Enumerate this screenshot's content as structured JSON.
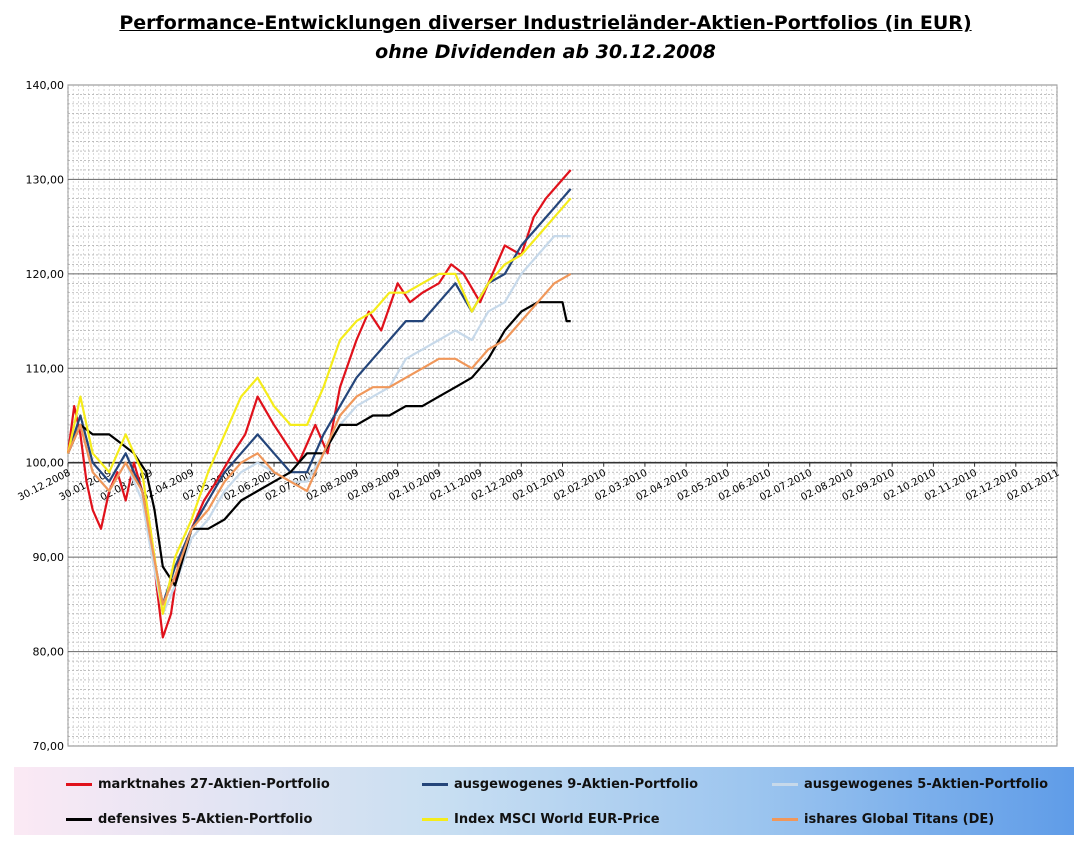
{
  "chart_data": {
    "type": "line",
    "title": "Performance-Entwicklungen diverser Industrieländer-Aktien-Portfolios (in EUR)",
    "subtitle": "ohne Dividenden ab 30.12.2008",
    "ylim": [
      70,
      140
    ],
    "y_ticks": [
      "70,00",
      "80,00",
      "90,00",
      "100,00",
      "110,00",
      "120,00",
      "130,00",
      "140,00"
    ],
    "x_ticks": [
      "30.12.2008",
      "30.01.2009",
      "02.03.2009",
      "02.04.2009",
      "02.05.2009",
      "02.06.2009",
      "02.07.2009",
      "02.08.2009",
      "02.09.2009",
      "02.10.2009",
      "02.11.2009",
      "02.12.2009",
      "02.01.2010",
      "02.02.2010",
      "02.03.2010",
      "02.04.2010",
      "02.05.2010",
      "02.06.2010",
      "02.07.2010",
      "02.08.2010",
      "02.09.2010",
      "02.10.2010",
      "02.11.2010",
      "02.12.2010",
      "02.01.2011"
    ],
    "x_unit": "month_index_from_30.12.2008",
    "grid": true,
    "legend_position": "bottom",
    "series": [
      {
        "name": "marktnahes 27-Aktien-Portfolio",
        "color": "#e0111b",
        "x": [
          0,
          0.15,
          0.3,
          0.45,
          0.6,
          0.8,
          1.0,
          1.2,
          1.4,
          1.6,
          1.8,
          2.0,
          2.15,
          2.3,
          2.5,
          2.7,
          3.0,
          3.3,
          3.6,
          4.0,
          4.3,
          4.6,
          5.0,
          5.3,
          5.6,
          6.0,
          6.3,
          6.6,
          7.0,
          7.3,
          7.6,
          8.0,
          8.3,
          8.6,
          9.0,
          9.3,
          9.6,
          10.0,
          10.3,
          10.6,
          11.0,
          11.3,
          11.6,
          12.0,
          12.2
        ],
        "values": [
          101,
          106,
          103,
          98,
          95,
          93,
          97,
          99,
          96,
          100,
          97,
          93,
          87,
          81.5,
          84,
          90,
          93,
          96,
          98,
          101,
          103,
          107,
          104,
          102,
          100,
          104,
          101,
          108,
          113,
          116,
          114,
          119,
          117,
          118,
          119,
          121,
          120,
          117,
          120,
          123,
          122,
          126,
          128,
          130,
          131
        ]
      },
      {
        "name": "ausgewogenes 9-Aktien-Portfolio",
        "color": "#24457a",
        "x": [
          0,
          0.3,
          0.6,
          1.0,
          1.4,
          1.8,
          2.0,
          2.3,
          2.6,
          3.0,
          3.4,
          3.8,
          4.2,
          4.6,
          5.0,
          5.4,
          5.8,
          6.2,
          6.6,
          7.0,
          7.4,
          7.8,
          8.2,
          8.6,
          9.0,
          9.4,
          9.8,
          10.2,
          10.6,
          11.0,
          11.4,
          11.8,
          12.2
        ],
        "values": [
          101,
          105,
          100,
          98,
          101,
          97,
          92,
          85,
          89,
          93,
          96,
          99,
          101,
          103,
          101,
          99,
          99,
          103,
          106,
          109,
          111,
          113,
          115,
          115,
          117,
          119,
          116,
          119,
          120,
          123,
          125,
          127,
          129
        ]
      },
      {
        "name": "ausgewogenes 5-Aktien-Portfolio",
        "color": "#c7d9ea",
        "x": [
          0,
          0.3,
          0.6,
          1.0,
          1.4,
          1.8,
          2.0,
          2.3,
          2.6,
          3.0,
          3.4,
          3.8,
          4.2,
          4.6,
          5.0,
          5.4,
          5.8,
          6.2,
          6.6,
          7.0,
          7.4,
          7.8,
          8.2,
          8.6,
          9.0,
          9.4,
          9.8,
          10.2,
          10.6,
          11.0,
          11.4,
          11.8,
          12.2
        ],
        "values": [
          101,
          104,
          99,
          97,
          100,
          96,
          91,
          84,
          87,
          92,
          94,
          97,
          99,
          100,
          99,
          98,
          98,
          101,
          104,
          106,
          107,
          108,
          111,
          112,
          113,
          114,
          113,
          116,
          117,
          120,
          122,
          124,
          124
        ]
      },
      {
        "name": "defensives 5-Aktien-Portfolio",
        "color": "#000000",
        "x": [
          0,
          0.3,
          0.6,
          1.0,
          1.3,
          1.6,
          1.9,
          2.1,
          2.3,
          2.6,
          3.0,
          3.4,
          3.8,
          4.2,
          4.6,
          5.0,
          5.4,
          5.8,
          6.2,
          6.6,
          7.0,
          7.4,
          7.8,
          8.2,
          8.6,
          9.0,
          9.4,
          9.8,
          10.2,
          10.6,
          11.0,
          11.4,
          11.8,
          12.0,
          12.1,
          12.2
        ],
        "values": [
          101,
          104,
          103,
          103,
          102,
          101,
          99,
          95,
          89,
          87,
          93,
          93,
          94,
          96,
          97,
          98,
          99,
          101,
          101,
          104,
          104,
          105,
          105,
          106,
          106,
          107,
          108,
          109,
          111,
          114,
          116,
          117,
          117,
          117,
          115,
          115
        ]
      },
      {
        "name": "Index MSCI World EUR-Price",
        "color": "#f5ec1a",
        "x": [
          0,
          0.3,
          0.6,
          1.0,
          1.4,
          1.8,
          2.0,
          2.3,
          2.6,
          3.0,
          3.4,
          3.8,
          4.2,
          4.6,
          5.0,
          5.4,
          5.8,
          6.2,
          6.6,
          7.0,
          7.4,
          7.8,
          8.2,
          8.6,
          9.0,
          9.4,
          9.8,
          10.2,
          10.6,
          11.0,
          11.4,
          11.8,
          12.2
        ],
        "values": [
          101,
          107,
          101,
          99,
          103,
          99,
          93,
          84,
          90,
          94,
          99,
          103,
          107,
          109,
          106,
          104,
          104,
          108,
          113,
          115,
          116,
          118,
          118,
          119,
          120,
          120,
          116,
          119,
          121,
          122,
          124,
          126,
          128
        ]
      },
      {
        "name": "ishares Global Titans (DE)",
        "color": "#f0975a",
        "x": [
          0,
          0.3,
          0.6,
          1.0,
          1.4,
          1.8,
          2.0,
          2.3,
          2.6,
          3.0,
          3.4,
          3.8,
          4.2,
          4.6,
          5.0,
          5.4,
          5.8,
          6.2,
          6.6,
          7.0,
          7.4,
          7.8,
          8.2,
          8.6,
          9.0,
          9.4,
          9.8,
          10.2,
          10.6,
          11.0,
          11.4,
          11.8,
          12.2
        ],
        "values": [
          101,
          104,
          99,
          97,
          100,
          97,
          92,
          85,
          88,
          93,
          95,
          98,
          100,
          101,
          99,
          98,
          97,
          101,
          105,
          107,
          108,
          108,
          109,
          110,
          111,
          111,
          110,
          112,
          113,
          115,
          117,
          119,
          120
        ]
      }
    ]
  }
}
